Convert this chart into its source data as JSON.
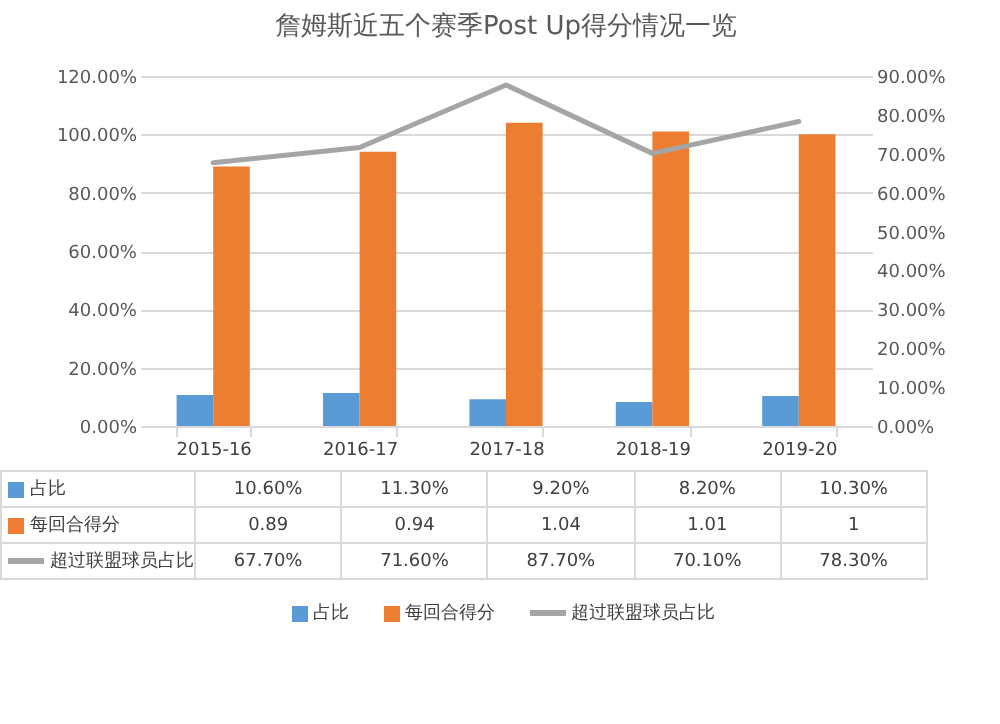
{
  "chart_data": {
    "type": "bar",
    "title": "詹姆斯近五个赛季Post Up得分情况一览",
    "categories": [
      "2015-16",
      "2016-17",
      "2017-18",
      "2018-19",
      "2019-20"
    ],
    "series": [
      {
        "name": "占比",
        "color": "#5b9bd5",
        "values": [
          0.106,
          0.113,
          0.092,
          0.082,
          0.103
        ],
        "value_labels": [
          "10.60%",
          "11.30%",
          "9.20%",
          "8.20%",
          "10.30%"
        ]
      },
      {
        "name": "每回合得分",
        "color": "#ed7d31",
        "values": [
          0.89,
          0.94,
          1.04,
          1.01,
          1
        ],
        "value_labels": [
          "0.89",
          "0.94",
          "1.04",
          "1.01",
          "1"
        ]
      },
      {
        "name": "超过联盟球员占比",
        "type": "line",
        "axis": "y2",
        "color": "#a5a5a5",
        "values": [
          0.677,
          0.716,
          0.877,
          0.701,
          0.783
        ],
        "value_labels": [
          "67.70%",
          "71.60%",
          "87.70%",
          "70.10%",
          "78.30%"
        ]
      }
    ],
    "ylim": [
      0,
      1.2
    ],
    "yticks": [
      {
        "value": 0,
        "label": "0.00%"
      },
      {
        "value": 0.2,
        "label": "20.00%"
      },
      {
        "value": 0.4,
        "label": "40.00%"
      },
      {
        "value": 0.6,
        "label": "60.00%"
      },
      {
        "value": 0.8,
        "label": "80.00%"
      },
      {
        "value": 1,
        "label": "100.00%"
      },
      {
        "value": 1.2,
        "label": "120.00%"
      }
    ],
    "y2lim": [
      0,
      0.9
    ],
    "y2ticks": [
      {
        "value": 0,
        "label": "0.00%"
      },
      {
        "value": 0.1,
        "label": "10.00%"
      },
      {
        "value": 0.2,
        "label": "20.00%"
      },
      {
        "value": 0.3,
        "label": "30.00%"
      },
      {
        "value": 0.4,
        "label": "40.00%"
      },
      {
        "value": 0.5,
        "label": "50.00%"
      },
      {
        "value": 0.6,
        "label": "60.00%"
      },
      {
        "value": 0.7,
        "label": "70.00%"
      },
      {
        "value": 0.8,
        "label": "80.00%"
      },
      {
        "value": 0.9,
        "label": "90.00%"
      }
    ],
    "grid": "y",
    "legend": "bottom"
  }
}
